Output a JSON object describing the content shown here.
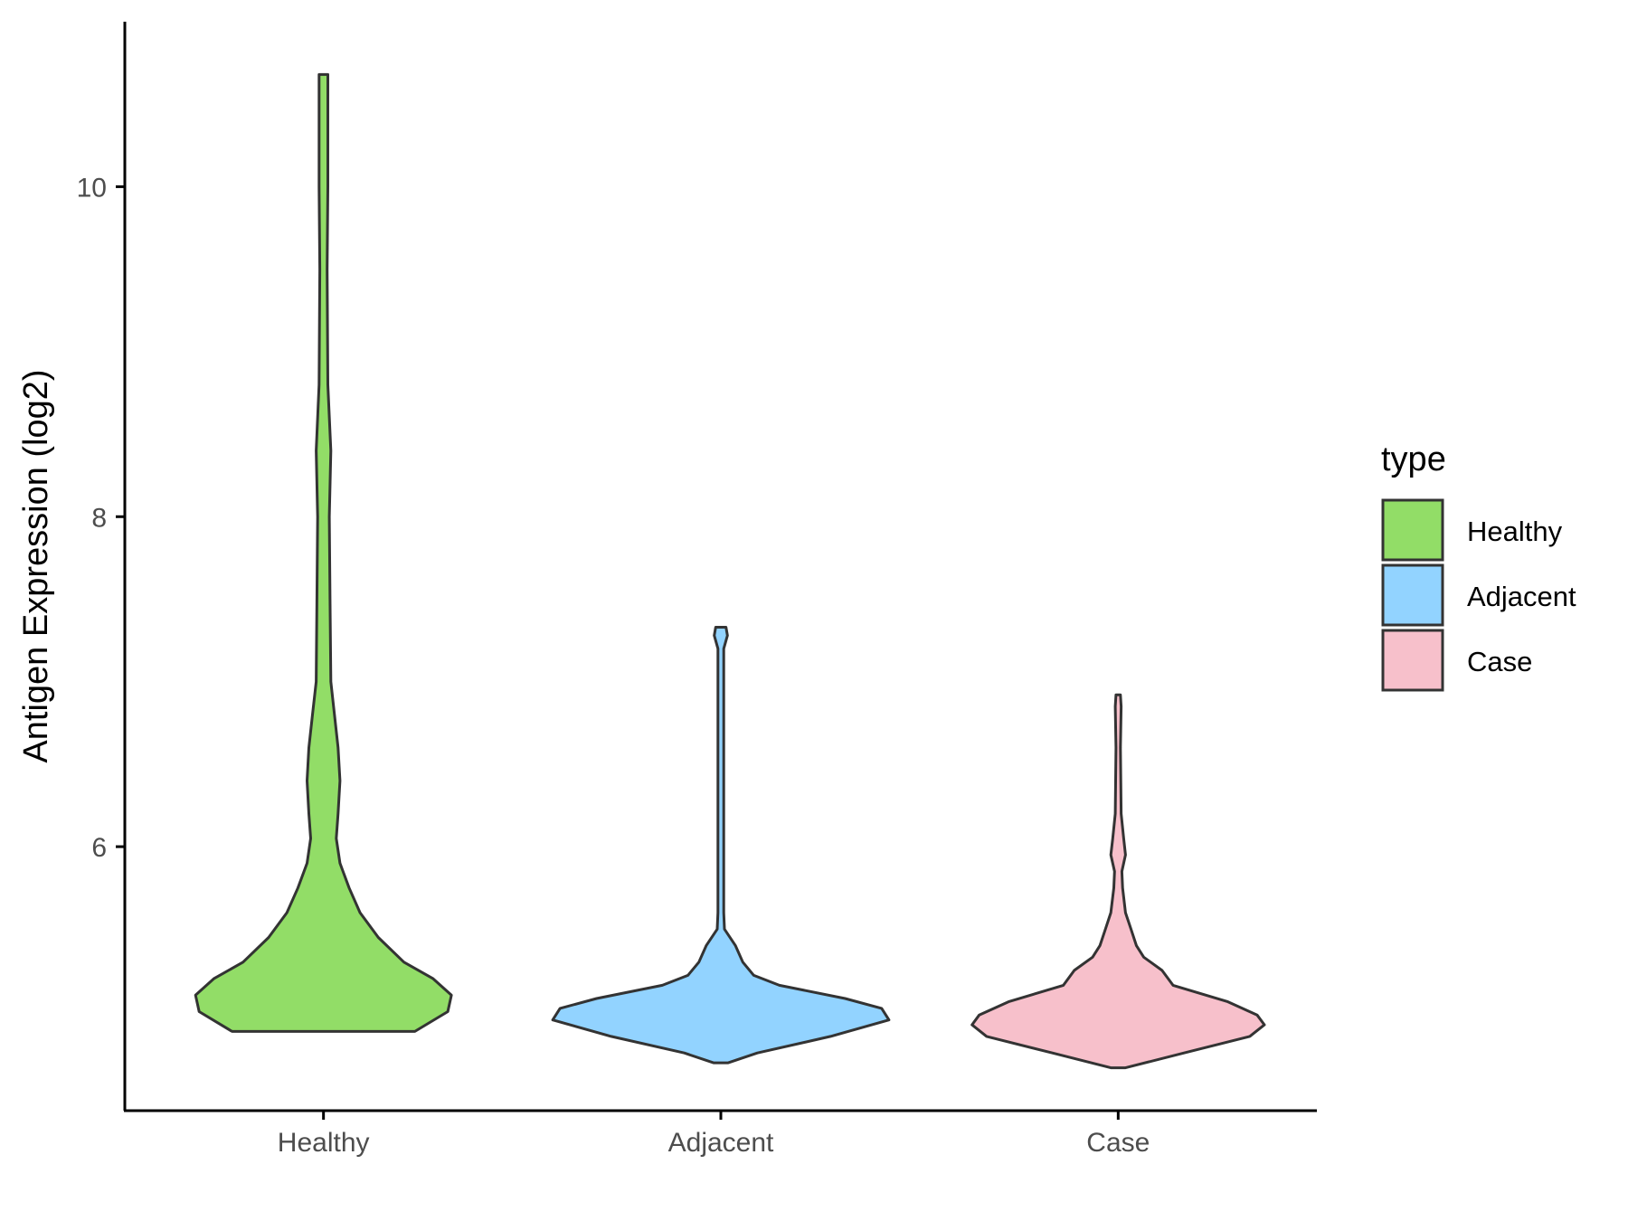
{
  "chart_data": {
    "type": "violin",
    "title": "",
    "xlabel": "",
    "ylabel": "Antigen Expression (log2)",
    "ylim": [
      4.4,
      11.0
    ],
    "yticks": [
      6,
      8,
      10
    ],
    "grid": false,
    "legend": {
      "title": "type",
      "position": "right"
    },
    "categories": [
      "Healthy",
      "Adjacent",
      "Case"
    ],
    "series": [
      {
        "name": "Healthy",
        "color": "#92DD67",
        "min": 4.88,
        "max": 10.68,
        "profile": [
          [
            4.88,
            0.25
          ],
          [
            5.0,
            0.34
          ],
          [
            5.1,
            0.35
          ],
          [
            5.2,
            0.3
          ],
          [
            5.3,
            0.22
          ],
          [
            5.45,
            0.15
          ],
          [
            5.6,
            0.1
          ],
          [
            5.75,
            0.07
          ],
          [
            5.9,
            0.045
          ],
          [
            6.05,
            0.035
          ],
          [
            6.2,
            0.04
          ],
          [
            6.4,
            0.045
          ],
          [
            6.6,
            0.04
          ],
          [
            6.8,
            0.03
          ],
          [
            7.0,
            0.02
          ],
          [
            7.5,
            0.018
          ],
          [
            8.0,
            0.016
          ],
          [
            8.4,
            0.02
          ],
          [
            8.8,
            0.012
          ],
          [
            9.5,
            0.01
          ],
          [
            10.0,
            0.012
          ],
          [
            10.68,
            0.012
          ]
        ]
      },
      {
        "name": "Adjacent",
        "color": "#92D3FF",
        "min": 4.69,
        "max": 7.33,
        "profile": [
          [
            4.69,
            0.02
          ],
          [
            4.75,
            0.1
          ],
          [
            4.85,
            0.3
          ],
          [
            4.95,
            0.46
          ],
          [
            5.02,
            0.44
          ],
          [
            5.08,
            0.34
          ],
          [
            5.16,
            0.16
          ],
          [
            5.22,
            0.09
          ],
          [
            5.3,
            0.06
          ],
          [
            5.4,
            0.04
          ],
          [
            5.5,
            0.01
          ],
          [
            5.6,
            0.008
          ],
          [
            6.5,
            0.008
          ],
          [
            7.2,
            0.008
          ],
          [
            7.28,
            0.018
          ],
          [
            7.33,
            0.014
          ]
        ]
      },
      {
        "name": "Case",
        "color": "#F7C0CB",
        "min": 4.66,
        "max": 6.92,
        "profile": [
          [
            4.66,
            0.02
          ],
          [
            4.75,
            0.18
          ],
          [
            4.85,
            0.36
          ],
          [
            4.92,
            0.4
          ],
          [
            4.98,
            0.38
          ],
          [
            5.06,
            0.3
          ],
          [
            5.16,
            0.15
          ],
          [
            5.25,
            0.12
          ],
          [
            5.33,
            0.07
          ],
          [
            5.4,
            0.05
          ],
          [
            5.5,
            0.035
          ],
          [
            5.6,
            0.02
          ],
          [
            5.75,
            0.012
          ],
          [
            5.85,
            0.01
          ],
          [
            5.95,
            0.02
          ],
          [
            6.05,
            0.015
          ],
          [
            6.2,
            0.008
          ],
          [
            6.6,
            0.006
          ],
          [
            6.85,
            0.008
          ],
          [
            6.92,
            0.006
          ]
        ]
      }
    ]
  }
}
